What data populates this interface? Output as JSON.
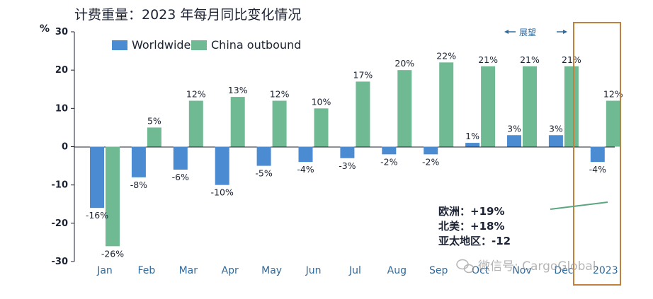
{
  "chart_data": {
    "type": "bar",
    "title": "计费重量：2023 年每月同比变化情况",
    "ylabel": "%",
    "ylim": [
      -30,
      30
    ],
    "yticks": [
      30,
      20,
      10,
      0,
      -10,
      -20,
      -30
    ],
    "grid": false,
    "legend_position": "top-left",
    "categories": [
      "Jan",
      "Feb",
      "Mar",
      "Apr",
      "May",
      "Jun",
      "Jul",
      "Aug",
      "Sep",
      "Oct",
      "Nov",
      "Dec",
      "2023"
    ],
    "series": [
      {
        "name": "Worldwide",
        "color": "#4a8bd1",
        "values": [
          -16,
          -8,
          -6,
          -10,
          -5,
          -4,
          -3,
          -2,
          -2,
          1,
          3,
          3,
          -4
        ],
        "labels": [
          "-16%",
          "-8%",
          "-6%",
          "-10%",
          "-5%",
          "-4%",
          "-3%",
          "-2%",
          "-2%",
          "1%",
          "3%",
          "3%",
          "-4%"
        ]
      },
      {
        "name": "China outbound",
        "color": "#6fba93",
        "values": [
          -26,
          5,
          12,
          13,
          12,
          10,
          17,
          20,
          22,
          21,
          21,
          21,
          12
        ],
        "labels": [
          "-26%",
          "5%",
          "12%",
          "13%",
          "12%",
          "10%",
          "17%",
          "20%",
          "22%",
          "21%",
          "21%",
          "21%",
          "12%"
        ]
      }
    ],
    "annotations": {
      "outlook_label": "展望",
      "region_notes": [
        "欧洲：+19%",
        "北美：+18%",
        "亚太地区：-12"
      ]
    },
    "highlight_color": "#c0803e",
    "trend_line_color": "#5aa77f"
  },
  "watermark": {
    "text": "微信号: CargoGlobal",
    "icon": "wechat-icon"
  }
}
